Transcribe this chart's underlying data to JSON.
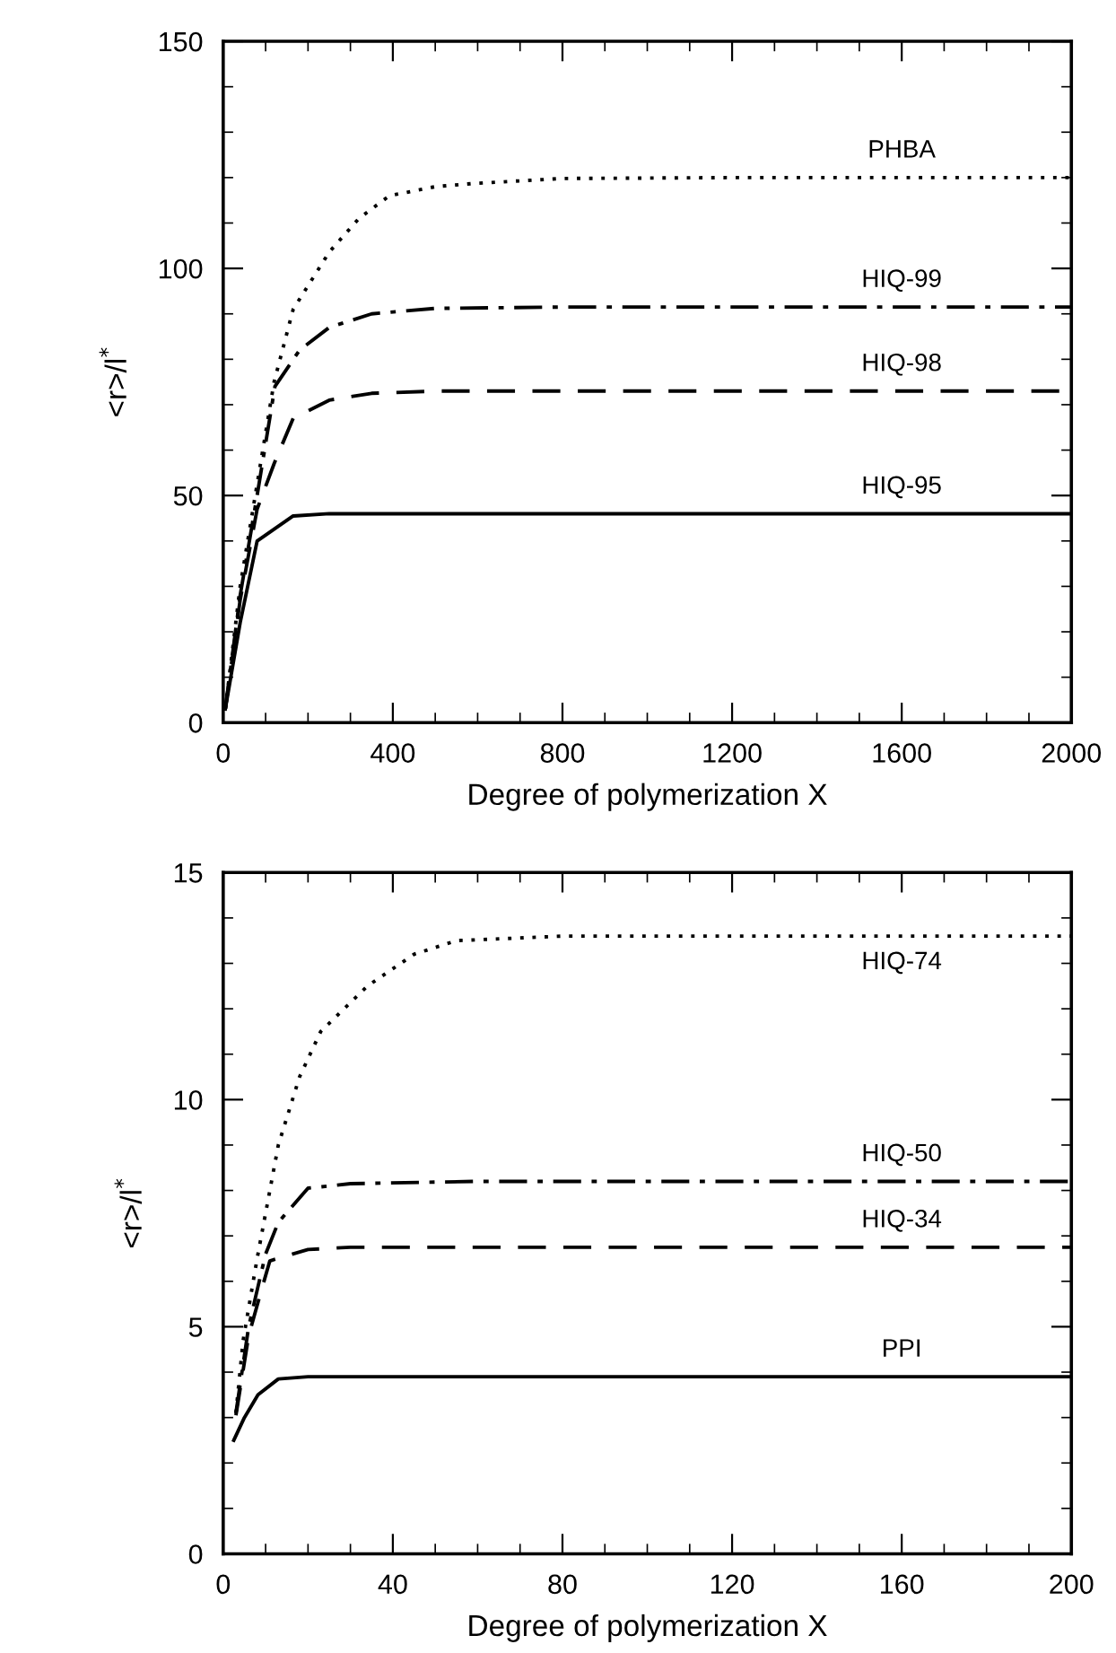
{
  "chart_data": [
    {
      "type": "line",
      "xlabel": "Degree of polymerization X",
      "ylabel": "<r>/l$^{*}$",
      "xlim": [
        0,
        2000
      ],
      "ylim": [
        0,
        150
      ],
      "xticks": [
        0,
        400,
        800,
        1200,
        1600,
        2000
      ],
      "yticks": [
        0,
        50,
        100,
        150
      ],
      "grid": false,
      "legend": false,
      "marker": "none",
      "series": [
        {
          "name": "PHBA",
          "color": "#000000",
          "line_style": "dotted",
          "x": [
            5,
            40,
            80,
            120,
            165,
            250,
            320,
            392,
            500,
            590,
            800,
            1200,
            2000
          ],
          "values": [
            3,
            30,
            52.5,
            75,
            91,
            103.6,
            111,
            116,
            118,
            118.7,
            119.8,
            120,
            120
          ]
        },
        {
          "name": "HIQ-99",
          "color": "#000000",
          "line_style": "dashdot",
          "x": [
            5,
            40,
            80,
            122,
            180,
            250,
            350,
            500,
            800,
            2000
          ],
          "values": [
            3,
            28,
            50,
            74,
            82,
            87,
            90,
            91.2,
            91.5,
            91.5
          ]
        },
        {
          "name": "HIQ-98",
          "color": "#000000",
          "line_style": "dashed",
          "x": [
            5,
            40,
            80,
            120,
            165,
            250,
            350,
            500,
            2000
          ],
          "values": [
            3,
            27,
            47,
            57,
            67,
            71,
            72.5,
            73,
            73
          ]
        },
        {
          "name": "HIQ-95",
          "color": "#000000",
          "line_style": "solid",
          "x": [
            5,
            40,
            80,
            165,
            250,
            400,
            2000
          ],
          "values": [
            3,
            22,
            40,
            45.5,
            46,
            46,
            46
          ]
        }
      ]
    },
    {
      "type": "line",
      "xlabel": "Degree of polymerization X",
      "ylabel": "<r>/l$^{*}$",
      "xlim": [
        0,
        200
      ],
      "ylim": [
        0,
        15
      ],
      "xticks": [
        0,
        40,
        80,
        120,
        160,
        200
      ],
      "yticks": [
        0,
        5,
        10,
        15
      ],
      "grid": false,
      "legend": false,
      "marker": "none",
      "series": [
        {
          "name": "HIQ-74",
          "color": "#000000",
          "line_style": "dotted",
          "x": [
            3,
            4.7,
            8,
            13,
            18,
            23,
            34,
            45,
            55,
            80,
            200
          ],
          "values": [
            3.1,
            4.7,
            6.5,
            9.0,
            10.5,
            11.5,
            12.5,
            13.2,
            13.5,
            13.6,
            13.6
          ]
        },
        {
          "name": "HIQ-50",
          "color": "#000000",
          "line_style": "dashdot",
          "x": [
            3,
            6,
            10,
            13,
            20,
            30,
            60,
            200
          ],
          "values": [
            3.1,
            5,
            6.6,
            7.3,
            8.05,
            8.15,
            8.2,
            8.2
          ]
        },
        {
          "name": "HIQ-34",
          "color": "#000000",
          "line_style": "dashed",
          "x": [
            3,
            6,
            9,
            11,
            20,
            30,
            200
          ],
          "values": [
            3.05,
            4.8,
            5.8,
            6.45,
            6.7,
            6.75,
            6.75
          ]
        },
        {
          "name": "PPI",
          "color": "#000000",
          "line_style": "solid",
          "x": [
            2.5,
            5,
            8.2,
            13,
            20,
            200
          ],
          "values": [
            2.5,
            3.0,
            3.5,
            3.85,
            3.9,
            3.9
          ]
        }
      ]
    }
  ]
}
